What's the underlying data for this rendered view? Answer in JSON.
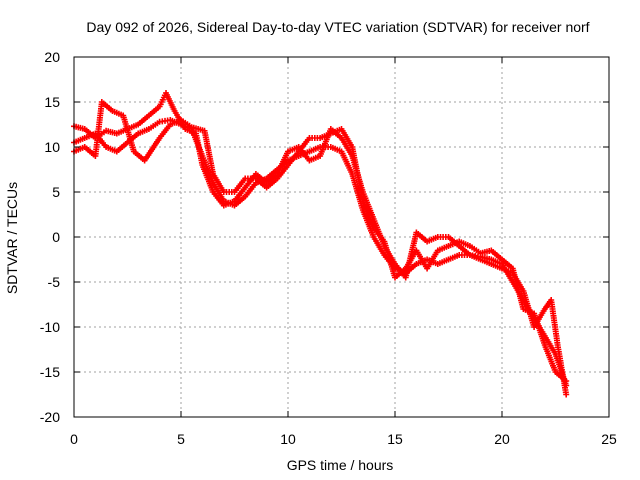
{
  "chart_data": {
    "type": "scatter",
    "title": "Day 092 of 2026, Sidereal Day-to-day VTEC variation (SDTVAR) for receiver norf",
    "xlabel": "GPS time / hours",
    "ylabel": "SDTVAR / TECUs",
    "xlim": [
      0,
      25
    ],
    "ylim": [
      -20,
      20
    ],
    "xticks": [
      0,
      5,
      10,
      15,
      20,
      25
    ],
    "yticks": [
      -20,
      -15,
      -10,
      -5,
      0,
      5,
      10,
      15,
      20
    ],
    "xtick_labels": [
      "0",
      "5",
      "10",
      "15",
      "20",
      "25"
    ],
    "ytick_labels": [
      "-20",
      "-15",
      "-10",
      "-5",
      "0",
      "5",
      "10",
      "15",
      "20"
    ],
    "grid": true,
    "marker": "plus",
    "color": "#ff0000",
    "series": [
      {
        "name": "track-a",
        "points": [
          [
            0.0,
            10.5
          ],
          [
            0.5,
            11.0
          ],
          [
            1.0,
            11.5
          ],
          [
            1.5,
            10.0
          ],
          [
            2.0,
            9.5
          ],
          [
            2.5,
            10.5
          ],
          [
            3.0,
            11.5
          ],
          [
            3.5,
            12.0
          ],
          [
            4.0,
            12.8
          ],
          [
            4.5,
            13.0
          ],
          [
            5.0,
            12.5
          ],
          [
            5.5,
            12.0
          ],
          [
            6.0,
            9.0
          ],
          [
            6.5,
            6.0
          ],
          [
            7.0,
            4.0
          ],
          [
            7.5,
            3.5
          ],
          [
            8.0,
            4.5
          ],
          [
            8.5,
            6.0
          ],
          [
            9.0,
            6.5
          ],
          [
            9.5,
            7.5
          ],
          [
            10.0,
            8.5
          ],
          [
            10.5,
            9.0
          ],
          [
            11.0,
            9.5
          ],
          [
            11.5,
            10.0
          ],
          [
            12.0,
            10.0
          ],
          [
            12.5,
            9.5
          ],
          [
            13.0,
            7.0
          ],
          [
            13.5,
            3.0
          ],
          [
            14.0,
            0.0
          ],
          [
            14.5,
            -2.0
          ],
          [
            15.0,
            -3.5
          ],
          [
            15.5,
            -4.0
          ],
          [
            16.0,
            -3.0
          ],
          [
            16.5,
            -2.5
          ],
          [
            17.0,
            -3.0
          ],
          [
            17.5,
            -2.5
          ],
          [
            18.0,
            -2.0
          ],
          [
            18.5,
            -2.0
          ],
          [
            19.0,
            -2.2
          ],
          [
            19.5,
            -2.5
          ],
          [
            20.0,
            -3.0
          ],
          [
            20.5,
            -5.0
          ],
          [
            21.0,
            -7.0
          ],
          [
            21.5,
            -9.0
          ],
          [
            22.0,
            -11.0
          ],
          [
            22.5,
            -13.0
          ],
          [
            23.0,
            -16.5
          ]
        ]
      },
      {
        "name": "track-b",
        "points": [
          [
            0.0,
            12.3
          ],
          [
            0.5,
            12.0
          ],
          [
            1.0,
            11.0
          ],
          [
            1.5,
            11.8
          ],
          [
            2.0,
            11.5
          ],
          [
            2.5,
            12.0
          ],
          [
            3.0,
            12.5
          ],
          [
            3.5,
            13.5
          ],
          [
            4.0,
            14.5
          ],
          [
            4.3,
            16.0
          ],
          [
            4.7,
            14.0
          ],
          [
            5.2,
            12.0
          ],
          [
            5.7,
            11.5
          ],
          [
            6.0,
            8.0
          ],
          [
            6.5,
            5.0
          ],
          [
            7.0,
            3.5
          ],
          [
            7.5,
            4.0
          ],
          [
            8.0,
            5.5
          ],
          [
            8.5,
            7.0
          ],
          [
            9.0,
            6.0
          ],
          [
            9.5,
            7.0
          ],
          [
            10.0,
            9.5
          ],
          [
            10.5,
            10.0
          ],
          [
            11.0,
            8.5
          ],
          [
            11.5,
            9.0
          ],
          [
            12.0,
            12.0
          ],
          [
            12.5,
            11.0
          ],
          [
            13.0,
            9.0
          ],
          [
            13.5,
            5.0
          ],
          [
            14.0,
            2.0
          ],
          [
            14.5,
            -1.0
          ],
          [
            15.0,
            -3.0
          ],
          [
            15.5,
            -4.5
          ],
          [
            16.0,
            0.5
          ],
          [
            16.5,
            -0.5
          ],
          [
            17.0,
            0.0
          ],
          [
            17.5,
            0.0
          ],
          [
            18.0,
            -1.0
          ],
          [
            18.5,
            -2.0
          ],
          [
            19.0,
            -2.5
          ],
          [
            19.5,
            -3.0
          ],
          [
            20.0,
            -3.5
          ],
          [
            20.5,
            -4.0
          ],
          [
            21.0,
            -6.0
          ],
          [
            21.5,
            -10.0
          ],
          [
            22.0,
            -8.0
          ],
          [
            22.3,
            -7.0
          ],
          [
            22.6,
            -12.0
          ],
          [
            23.0,
            -17.5
          ]
        ]
      },
      {
        "name": "track-c",
        "points": [
          [
            0.0,
            9.5
          ],
          [
            0.5,
            10.0
          ],
          [
            1.0,
            9.0
          ],
          [
            1.3,
            15.0
          ],
          [
            1.8,
            14.0
          ],
          [
            2.3,
            13.5
          ],
          [
            2.8,
            9.5
          ],
          [
            3.3,
            8.5
          ],
          [
            4.0,
            11.0
          ],
          [
            4.5,
            12.5
          ],
          [
            5.0,
            13.0
          ],
          [
            5.5,
            12.2
          ],
          [
            6.1,
            11.8
          ],
          [
            6.5,
            7.0
          ],
          [
            7.0,
            5.0
          ],
          [
            7.5,
            5.0
          ],
          [
            8.0,
            6.5
          ],
          [
            8.5,
            6.5
          ],
          [
            9.0,
            5.5
          ],
          [
            9.5,
            6.5
          ],
          [
            10.0,
            8.0
          ],
          [
            10.5,
            9.5
          ],
          [
            11.0,
            11.0
          ],
          [
            11.5,
            11.0
          ],
          [
            12.0,
            11.5
          ],
          [
            12.5,
            12.0
          ],
          [
            13.0,
            10.0
          ],
          [
            13.5,
            4.0
          ],
          [
            14.0,
            1.0
          ],
          [
            14.5,
            -0.5
          ],
          [
            15.0,
            -4.5
          ],
          [
            15.5,
            -3.5
          ],
          [
            16.0,
            -1.5
          ],
          [
            16.5,
            -3.5
          ],
          [
            17.0,
            -1.5
          ],
          [
            17.5,
            -1.0
          ],
          [
            18.0,
            -0.5
          ],
          [
            18.5,
            -1.0
          ],
          [
            19.0,
            -1.8
          ],
          [
            19.5,
            -1.5
          ],
          [
            20.0,
            -2.5
          ],
          [
            20.5,
            -3.5
          ],
          [
            21.0,
            -8.0
          ],
          [
            21.5,
            -8.5
          ],
          [
            22.0,
            -12.0
          ],
          [
            22.5,
            -15.0
          ],
          [
            23.0,
            -16.0
          ]
        ]
      }
    ]
  }
}
